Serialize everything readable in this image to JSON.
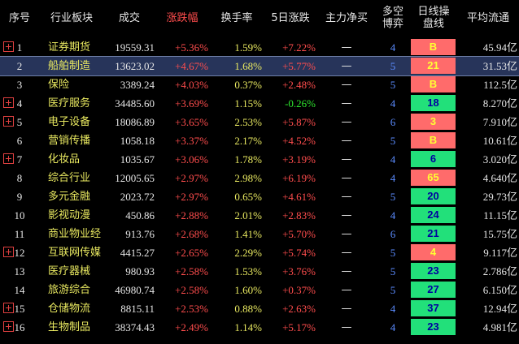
{
  "headers": {
    "idx": "序号",
    "sector": "行业板块",
    "turnover": "成交",
    "change": "涨跌幅",
    "turnover_rate": "换手率",
    "change5d": "5日涨跌",
    "net_buy": "主力净买",
    "duokong_1": "多空",
    "duokong_2": "博弈",
    "daily_1": "日线操",
    "daily_2": "盘线",
    "avg_cap": "平均流通"
  },
  "colors": {
    "up": "#ff4d4d",
    "down": "#2ee62e",
    "badge_red": "#ff6b6b",
    "badge_green": "#22e07a",
    "selected_row": "#27345a"
  },
  "rows": [
    {
      "idx": "1",
      "name": "证券期货",
      "vol": "19559.31",
      "chg": "+5.36%",
      "tr": "1.59%",
      "chg5": "+7.22%",
      "chg5_dir": "up",
      "net": "—",
      "dk": "4",
      "sig": "B",
      "sig_color": "red",
      "avg": "45.94亿",
      "expand": true
    },
    {
      "idx": "2",
      "name": "船舶制造",
      "vol": "13623.02",
      "chg": "+4.67%",
      "tr": "1.68%",
      "chg5": "+5.77%",
      "chg5_dir": "up",
      "net": "—",
      "dk": "5",
      "sig": "21",
      "sig_color": "red",
      "avg": "31.53亿",
      "expand": false,
      "selected": true
    },
    {
      "idx": "3",
      "name": "保险",
      "vol": "3389.24",
      "chg": "+4.03%",
      "tr": "0.37%",
      "chg5": "+2.48%",
      "chg5_dir": "up",
      "net": "—",
      "dk": "5",
      "sig": "B",
      "sig_color": "red",
      "avg": "112.5亿",
      "expand": false
    },
    {
      "idx": "4",
      "name": "医疗服务",
      "vol": "34485.60",
      "chg": "+3.69%",
      "tr": "1.15%",
      "chg5": "-0.26%",
      "chg5_dir": "down",
      "net": "—",
      "dk": "4",
      "sig": "18",
      "sig_color": "green",
      "avg": "8.270亿",
      "expand": true
    },
    {
      "idx": "5",
      "name": "电子设备",
      "vol": "18086.89",
      "chg": "+3.65%",
      "tr": "2.53%",
      "chg5": "+5.87%",
      "chg5_dir": "up",
      "net": "—",
      "dk": "6",
      "sig": "3",
      "sig_color": "red",
      "avg": "7.910亿",
      "expand": true
    },
    {
      "idx": "6",
      "name": "营销传播",
      "vol": "1058.18",
      "chg": "+3.37%",
      "tr": "2.17%",
      "chg5": "+4.52%",
      "chg5_dir": "up",
      "net": "—",
      "dk": "5",
      "sig": "B",
      "sig_color": "red",
      "avg": "10.61亿",
      "expand": false
    },
    {
      "idx": "7",
      "name": "化妆品",
      "vol": "1035.67",
      "chg": "+3.06%",
      "tr": "1.78%",
      "chg5": "+3.19%",
      "chg5_dir": "up",
      "net": "—",
      "dk": "4",
      "sig": "6",
      "sig_color": "green",
      "avg": "3.020亿",
      "expand": true
    },
    {
      "idx": "8",
      "name": "综合行业",
      "vol": "12005.65",
      "chg": "+2.97%",
      "tr": "2.98%",
      "chg5": "+6.19%",
      "chg5_dir": "up",
      "net": "—",
      "dk": "4",
      "sig": "65",
      "sig_color": "red",
      "avg": "4.640亿",
      "expand": false
    },
    {
      "idx": "9",
      "name": "多元金融",
      "vol": "2023.72",
      "chg": "+2.97%",
      "tr": "0.65%",
      "chg5": "+4.61%",
      "chg5_dir": "up",
      "net": "—",
      "dk": "5",
      "sig": "20",
      "sig_color": "green",
      "avg": "29.73亿",
      "expand": false
    },
    {
      "idx": "10",
      "name": "影视动漫",
      "vol": "450.86",
      "chg": "+2.88%",
      "tr": "2.01%",
      "chg5": "+2.83%",
      "chg5_dir": "up",
      "net": "—",
      "dk": "4",
      "sig": "24",
      "sig_color": "green",
      "avg": "11.15亿",
      "expand": false
    },
    {
      "idx": "11",
      "name": "商业物业经",
      "vol": "913.76",
      "chg": "+2.68%",
      "tr": "1.41%",
      "chg5": "+5.70%",
      "chg5_dir": "up",
      "net": "—",
      "dk": "6",
      "sig": "21",
      "sig_color": "green",
      "avg": "15.75亿",
      "expand": false
    },
    {
      "idx": "12",
      "name": "互联网传媒",
      "vol": "4415.27",
      "chg": "+2.65%",
      "tr": "2.29%",
      "chg5": "+5.74%",
      "chg5_dir": "up",
      "net": "—",
      "dk": "5",
      "sig": "4",
      "sig_color": "red",
      "avg": "9.117亿",
      "expand": true
    },
    {
      "idx": "13",
      "name": "医疗器械",
      "vol": "980.93",
      "chg": "+2.58%",
      "tr": "1.53%",
      "chg5": "+3.76%",
      "chg5_dir": "up",
      "net": "—",
      "dk": "5",
      "sig": "23",
      "sig_color": "green",
      "avg": "2.786亿",
      "expand": false
    },
    {
      "idx": "14",
      "name": "旅游综合",
      "vol": "46980.74",
      "chg": "+2.58%",
      "tr": "1.60%",
      "chg5": "+0.37%",
      "chg5_dir": "up",
      "net": "—",
      "dk": "5",
      "sig": "27",
      "sig_color": "green",
      "avg": "6.150亿",
      "expand": false
    },
    {
      "idx": "15",
      "name": "仓储物流",
      "vol": "8815.11",
      "chg": "+2.53%",
      "tr": "0.88%",
      "chg5": "+2.63%",
      "chg5_dir": "up",
      "net": "—",
      "dk": "4",
      "sig": "37",
      "sig_color": "green",
      "avg": "12.94亿",
      "expand": true
    },
    {
      "idx": "16",
      "name": "生物制品",
      "vol": "38374.43",
      "chg": "+2.49%",
      "tr": "1.14%",
      "chg5": "+5.17%",
      "chg5_dir": "up",
      "net": "—",
      "dk": "4",
      "sig": "23",
      "sig_color": "green",
      "avg": "4.981亿",
      "expand": true
    }
  ]
}
